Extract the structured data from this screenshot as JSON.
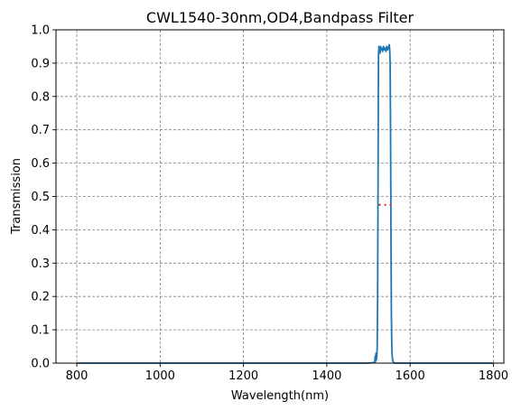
{
  "chart_data": {
    "type": "line",
    "title": "CWL1540-30nm,OD4,Bandpass Filter",
    "xlabel": "Wavelength(nm)",
    "ylabel": "Transmission",
    "xlim": [
      750,
      1825
    ],
    "ylim": [
      0,
      1.0
    ],
    "xticks": [
      800,
      1000,
      1200,
      1400,
      1600,
      1800
    ],
    "yticks": [
      0.0,
      0.1,
      0.2,
      0.3,
      0.4,
      0.5,
      0.6,
      0.7,
      0.8,
      0.9,
      1.0
    ],
    "grid": true,
    "legend": "none",
    "series": [
      {
        "color": "#1f77b4",
        "x": [
          800,
          1000,
          1200,
          1400,
          1500,
          1515,
          1516,
          1517,
          1518,
          1519,
          1520,
          1521,
          1522,
          1523,
          1524,
          1525,
          1526,
          1527,
          1528,
          1529,
          1530,
          1532,
          1534,
          1536,
          1538,
          1540,
          1542,
          1544,
          1546,
          1548,
          1550,
          1551,
          1552,
          1553,
          1554,
          1555,
          1556,
          1557,
          1558,
          1559,
          1560,
          1562,
          1565,
          1570,
          1600,
          1700,
          1800
        ],
        "y": [
          0.0,
          0.0,
          0.0,
          0.0,
          0.0,
          0.002,
          0.02,
          0.005,
          0.03,
          0.01,
          0.02,
          0.05,
          0.2,
          0.55,
          0.92,
          0.95,
          0.935,
          0.945,
          0.93,
          0.95,
          0.94,
          0.945,
          0.935,
          0.95,
          0.94,
          0.945,
          0.935,
          0.95,
          0.94,
          0.945,
          0.955,
          0.94,
          0.9,
          0.7,
          0.4,
          0.15,
          0.05,
          0.02,
          0.01,
          0.005,
          0.002,
          0.0,
          0.0,
          0.0,
          0.0,
          0.0,
          0.0
        ]
      },
      {
        "color": "#d62728",
        "style": "dotted",
        "x": [
          1525,
          1555
        ],
        "y": [
          0.475,
          0.475
        ]
      }
    ]
  }
}
